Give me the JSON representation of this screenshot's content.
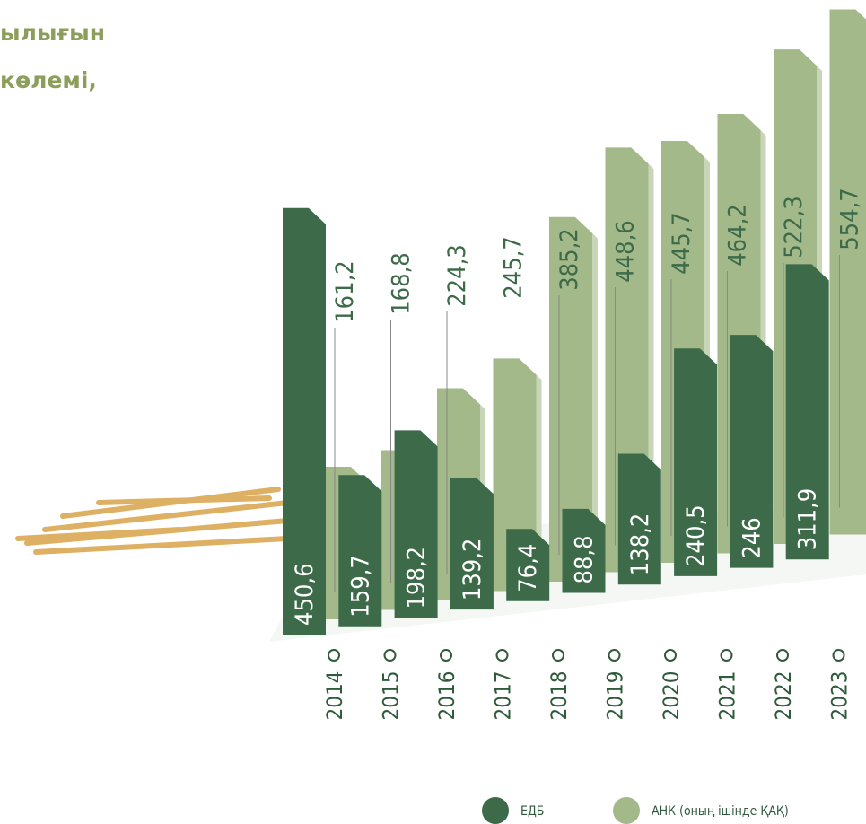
{
  "chart_data": {
    "type": "bar",
    "title_lines": [
      "ылығын",
      "көлемі,"
    ],
    "categories": [
      "2014",
      "2015",
      "2016",
      "2017",
      "2018",
      "2019",
      "2020",
      "2021",
      "2022",
      "2023"
    ],
    "series": [
      {
        "name": "ЕДБ",
        "color": "#3d6b4a",
        "values": [
          450.6,
          159.7,
          198.2,
          139.2,
          76.4,
          88.8,
          138.2,
          240.5,
          246,
          311.9
        ],
        "value_labels": [
          "450,6",
          "159,7",
          "198,2",
          "139,2",
          "76,4",
          "88,8",
          "138,2",
          "240,5",
          "246",
          "311,9"
        ]
      },
      {
        "name": "АНК (оның ішінде ҚАҚ)",
        "color": "#a3b98a",
        "values": [
          161.2,
          168.8,
          224.3,
          245.7,
          385.2,
          448.6,
          445.7,
          464.2,
          522.3,
          554.7
        ],
        "value_labels": [
          "161,2",
          "168,8",
          "224,3",
          "245,7",
          "385,2",
          "448,6",
          "445,7",
          "464,2",
          "522,3",
          "554,7"
        ]
      }
    ]
  }
}
